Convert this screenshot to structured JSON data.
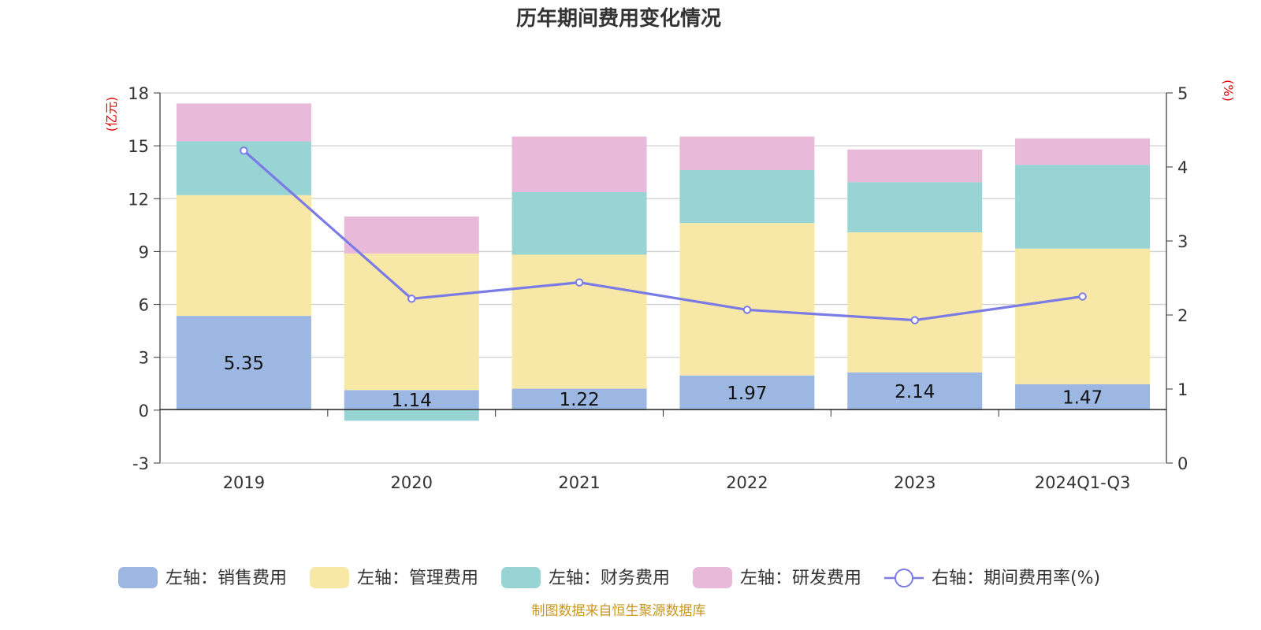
{
  "chart_data": {
    "type": "bar",
    "title": "历年期间费用变化情况",
    "categories": [
      "2019",
      "2020",
      "2021",
      "2022",
      "2023",
      "2024Q1-Q3"
    ],
    "left_axis": {
      "unit": "(亿元)",
      "min": -3,
      "max": 18,
      "ticks": [
        "-3",
        "0",
        "3",
        "6",
        "9",
        "12",
        "15",
        "18"
      ]
    },
    "right_axis": {
      "unit": "(%)",
      "min": 0,
      "max": 5,
      "ticks": [
        "0",
        "1",
        "2",
        "3",
        "4",
        "5"
      ]
    },
    "series": [
      {
        "name": "左轴：销售费用",
        "color": "#9db7e3",
        "values": [
          5.35,
          1.14,
          1.22,
          1.97,
          2.14,
          1.47
        ],
        "labels": [
          "5.35",
          "1.14",
          "1.22",
          "1.97",
          "2.14",
          "1.47"
        ]
      },
      {
        "name": "左轴：管理费用",
        "color": "#f8e8a8",
        "values": [
          6.85,
          7.75,
          7.6,
          8.65,
          7.95,
          7.7
        ]
      },
      {
        "name": "左轴：财务费用",
        "color": "#98d4d4",
        "values": [
          3.05,
          -0.6,
          3.55,
          3.0,
          2.85,
          4.75
        ]
      },
      {
        "name": "左轴：研发费用",
        "color": "#e8b9d9",
        "values": [
          2.15,
          2.1,
          3.15,
          1.9,
          1.85,
          1.5
        ]
      }
    ],
    "line_series": {
      "name": "右轴：期间费用率(%)",
      "color": "#7b7be6",
      "values": [
        4.22,
        2.22,
        2.44,
        2.07,
        1.93,
        2.25
      ]
    },
    "grid": true,
    "legend_position": "bottom"
  },
  "footer": "制图数据来自恒生聚源数据库"
}
